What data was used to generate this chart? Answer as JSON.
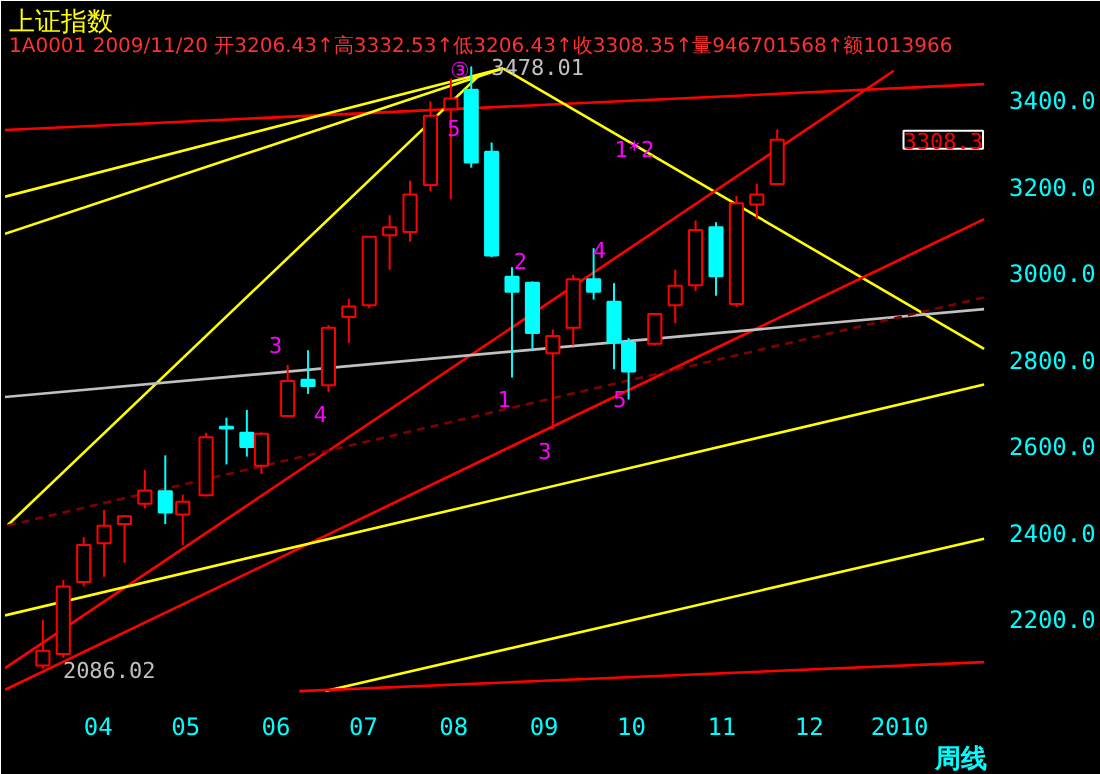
{
  "chart_data": {
    "type": "candlestick",
    "title": "上证指数",
    "subtitle": "1A0001 2009/11/20 开3206.43↑高3332.53↑低3206.43↑收3308.35↑量946701568↑额1013966",
    "x": [
      "2009-03-13",
      "2009-03-20",
      "2009-03-27",
      "2009-04-03",
      "2009-04-10",
      "2009-04-17",
      "2009-04-24",
      "2009-04-30",
      "2009-05-08",
      "2009-05-15",
      "2009-05-22",
      "2009-05-27",
      "2009-06-05",
      "2009-06-12",
      "2009-06-19",
      "2009-06-26",
      "2009-07-03",
      "2009-07-10",
      "2009-07-17",
      "2009-07-24",
      "2009-07-31",
      "2009-08-07",
      "2009-08-14",
      "2009-08-21",
      "2009-08-28",
      "2009-09-04",
      "2009-09-11",
      "2009-09-18",
      "2009-09-25",
      "2009-09-30",
      "2009-10-09",
      "2009-10-16",
      "2009-10-23",
      "2009-10-30",
      "2009-11-06",
      "2009-11-13",
      "2009-11-20"
    ],
    "ohlc": [
      [
        2093,
        2199,
        2086.02,
        2127
      ],
      [
        2120,
        2291,
        2111,
        2276
      ],
      [
        2286,
        2390,
        2276,
        2372
      ],
      [
        2376,
        2453,
        2298,
        2416
      ],
      [
        2420,
        2441,
        2331,
        2438
      ],
      [
        2467,
        2545,
        2456,
        2498
      ],
      [
        2496,
        2579,
        2420,
        2447
      ],
      [
        2442,
        2488,
        2372,
        2472
      ],
      [
        2487,
        2631,
        2484,
        2621
      ],
      [
        2645,
        2666,
        2558,
        2641
      ],
      [
        2631,
        2684,
        2576,
        2598
      ],
      [
        2555,
        2632,
        2536,
        2629
      ],
      [
        2670,
        2788,
        2668,
        2751
      ],
      [
        2754,
        2822,
        2721,
        2739
      ],
      [
        2741,
        2880,
        2726,
        2874
      ],
      [
        2899,
        2941,
        2839,
        2923
      ],
      [
        2926,
        3085,
        2919,
        3084
      ],
      [
        3088,
        3134,
        3008,
        3106
      ],
      [
        3095,
        3214,
        3073,
        3182
      ],
      [
        3204,
        3397,
        3189,
        3364
      ],
      [
        3379,
        3450,
        3171,
        3404
      ],
      [
        3424,
        3478.01,
        3244,
        3256
      ],
      [
        3281,
        3302,
        3037,
        3041
      ],
      [
        2992,
        3014,
        2759,
        2957
      ],
      [
        2978,
        2981,
        2822,
        2862
      ],
      [
        2815,
        2870,
        2640,
        2855
      ],
      [
        2874,
        2996,
        2833,
        2986
      ],
      [
        2986,
        3058,
        2939,
        2957
      ],
      [
        2934,
        2977,
        2778,
        2839
      ],
      [
        2839,
        2850,
        2708,
        2773
      ],
      [
        2837,
        2907,
        2833,
        2906
      ],
      [
        2926,
        3008,
        2885,
        2971
      ],
      [
        2972,
        3122,
        2959,
        3100
      ],
      [
        3106,
        3118,
        2948,
        2993
      ],
      [
        2929,
        3179,
        2922,
        3162
      ],
      [
        3159,
        3207,
        3125,
        3182
      ],
      [
        3206.43,
        3332.53,
        3206.43,
        3308.35
      ]
    ],
    "colors": [
      "#ff0000",
      "#ff0000",
      "#ff0000",
      "#ff0000",
      "#ff0000",
      "#ff0000",
      "#00ffff",
      "#ff0000",
      "#ff0000",
      "#00ffff",
      "#00ffff",
      "#ff0000",
      "#ff0000",
      "#00ffff",
      "#ff0000",
      "#ff0000",
      "#ff0000",
      "#ff0000",
      "#ff0000",
      "#ff0000",
      "#ff0000",
      "#00ffff",
      "#00ffff",
      "#00ffff",
      "#00ffff",
      "#ff0000",
      "#ff0000",
      "#00ffff",
      "#00ffff",
      "#00ffff",
      "#ff0000",
      "#ff0000",
      "#ff0000",
      "#00ffff",
      "#ff0000",
      "#ff0000",
      "#ff0000"
    ],
    "series": [
      {
        "type": "line",
        "color": "#ff0000",
        "x": [
          "2009-02-28",
          "2010-01-30"
        ],
        "values": [
          3331,
          3437
        ]
      },
      {
        "type": "line",
        "color": "#ffff00",
        "x": [
          "2009-02-28",
          "2009-08-18"
        ],
        "values": [
          3177,
          3474
        ]
      },
      {
        "type": "line",
        "color": "#ffff00",
        "x": [
          "2009-02-28",
          "2009-08-18"
        ],
        "values": [
          3091,
          3474
        ]
      },
      {
        "type": "line",
        "color": "#ffff00",
        "x": [
          "2009-03-01",
          "2009-08-10"
        ],
        "values": [
          2418,
          3459
        ]
      },
      {
        "type": "line",
        "color": "#ffff00",
        "x": [
          "2009-08-18",
          "2010-01-30"
        ],
        "values": [
          3473,
          2825
        ]
      },
      {
        "type": "line",
        "color": "#ff0000",
        "x": [
          "2009-02-28",
          "2009-12-30"
        ],
        "values": [
          2087,
          3468
        ]
      },
      {
        "type": "line",
        "color": "#ff0000",
        "x": [
          "2009-02-28",
          "2010-01-30"
        ],
        "values": [
          2037,
          3125
        ]
      },
      {
        "type": "line",
        "color": "#c0c0c0",
        "x": [
          "2009-02-28",
          "2010-01-30"
        ],
        "values": [
          2714,
          2917
        ]
      },
      {
        "type": "line",
        "color": "#800000",
        "line_style": "dashed",
        "x": [
          "2009-03-01",
          "2010-01-30"
        ],
        "values": [
          2417,
          2944
        ]
      },
      {
        "type": "line",
        "color": "#ffff00",
        "x": [
          "2009-02-28",
          "2010-01-30"
        ],
        "values": [
          2209,
          2743
        ]
      },
      {
        "type": "line",
        "color": "#ffff00",
        "x": [
          "2009-06-18",
          "2010-01-30"
        ],
        "values": [
          2034,
          2386
        ]
      },
      {
        "type": "line",
        "color": "#ff0000",
        "x": [
          "2009-06-09",
          "2010-01-30"
        ],
        "values": [
          2034,
          2101
        ]
      }
    ],
    "xlim": [
      "2009-02-28",
      "2010-01-31"
    ],
    "xticks": [
      {
        "value": "2009-04-01",
        "label": "04"
      },
      {
        "value": "2009-05-01",
        "label": "05"
      },
      {
        "value": "2009-06-01",
        "label": "06"
      },
      {
        "value": "2009-07-01",
        "label": "07"
      },
      {
        "value": "2009-08-01",
        "label": "08"
      },
      {
        "value": "2009-09-01",
        "label": "09"
      },
      {
        "value": "2009-10-01",
        "label": "10"
      },
      {
        "value": "2009-11-01",
        "label": "11"
      },
      {
        "value": "2009-12-01",
        "label": "12"
      },
      {
        "value": "2010-01-01",
        "label": "2010"
      }
    ],
    "ylim": [
      2025,
      3620
    ],
    "yticks": [
      {
        "value": 2200,
        "label": "2200.0"
      },
      {
        "value": 2400,
        "label": "2400.0"
      },
      {
        "value": 2600,
        "label": "2600.0"
      },
      {
        "value": 2800,
        "label": "2800.0"
      },
      {
        "value": 3000,
        "label": "3000.0"
      },
      {
        "value": 3200,
        "label": "3200.0"
      },
      {
        "value": 3400,
        "label": "3400.0"
      }
    ],
    "grid": false,
    "annotations": [
      {
        "text": "3478.01",
        "x": "2009-08-07",
        "y": 3478.01
      },
      {
        "text": "2086.02",
        "x": "2009-03-13",
        "y": 2086.02
      },
      {
        "text": "③",
        "x": "2009-08-03",
        "y": 3468
      },
      {
        "text": "5",
        "x": "2009-08-01",
        "y": 3337
      },
      {
        "text": "3",
        "x": "2009-06-05",
        "y": 2788
      },
      {
        "text": "4",
        "x": "2009-06-19",
        "y": 2726
      },
      {
        "text": "1",
        "x": "2009-08-21",
        "y": 2759
      },
      {
        "text": "2",
        "x": "2009-08-28",
        "y": 2981
      },
      {
        "text": "4",
        "x": "2009-09-20",
        "y": 3055
      },
      {
        "text": "5",
        "x": "2009-09-27",
        "y": 2711
      },
      {
        "text": "1*2",
        "x": "2009-10-02",
        "y": 3285
      },
      {
        "text": "3",
        "x": "2009-09-04",
        "y": 2640
      },
      "3308.3",
      "周线"
    ]
  }
}
